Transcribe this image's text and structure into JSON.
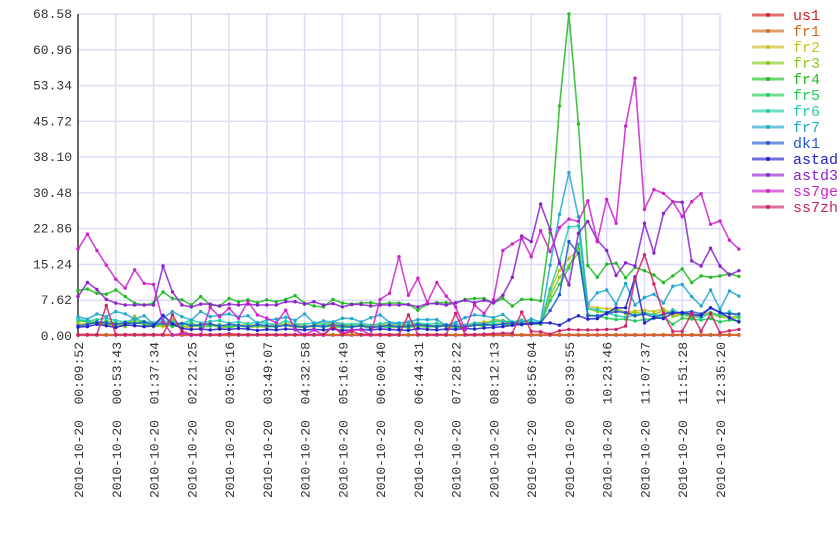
{
  "chart_data": {
    "type": "line",
    "title": "",
    "xlabel": "",
    "ylabel": "",
    "ylim": [
      0,
      68.58
    ],
    "yticks": [
      "0.00",
      "7.62",
      "15.24",
      "22.86",
      "30.48",
      "38.10",
      "45.72",
      "53.34",
      "60.96",
      "68.58"
    ],
    "xticks": [
      "2010-10-20 00:09:52",
      "2010-10-20 00:53:43",
      "2010-10-20 01:37:34",
      "2010-10-20 02:21:25",
      "2010-10-20 03:05:16",
      "2010-10-20 03:49:07",
      "2010-10-20 04:32:58",
      "2010-10-20 05:16:49",
      "2010-10-20 06:00:40",
      "2010-10-20 06:44:31",
      "2010-10-20 07:28:22",
      "2010-10-20 08:12:13",
      "2010-10-20 08:56:04",
      "2010-10-20 09:39:55",
      "2010-10-20 10:23:46",
      "2010-10-20 11:07:37",
      "2010-10-20 11:51:28",
      "2010-10-20 12:35:20"
    ],
    "points_per_tick_interval": 4,
    "grid": true,
    "legend_position": "right",
    "series": [
      {
        "name": "us1",
        "color": "#d42020",
        "values": [
          0.2,
          0.2,
          0.2,
          0.2,
          0.2,
          0.2,
          0.2,
          0.2,
          0.2,
          0.2,
          0.2,
          0.2,
          0.2,
          0.2,
          0.2,
          0.2,
          0.2,
          0.2,
          0.2,
          0.2,
          0.2,
          0.2,
          0.2,
          0.2,
          0.2,
          0.2,
          0.2,
          0.2,
          0.2,
          0.2,
          0.2,
          0.2,
          0.2,
          0.2,
          0.2,
          0.2,
          0.2,
          0.2,
          0.2,
          0.2,
          0.2,
          0.2,
          0.2,
          0.2,
          0.2,
          0.2,
          0.2,
          0.2,
          0.2,
          0.2,
          0.2,
          0.2,
          0.2,
          0.2,
          0.2,
          0.2,
          0.2,
          0.2,
          0.2,
          0.2,
          0.2,
          0.2,
          0.2,
          0.2,
          0.2,
          0.2,
          0.2,
          0.2,
          0.2,
          0.2,
          0.2
        ]
      },
      {
        "name": "fr1",
        "color": "#d06a20",
        "values": [
          0.3,
          0.3,
          0.3,
          0.3,
          0.3,
          0.3,
          0.3,
          0.3,
          0.3,
          0.3,
          0.3,
          0.3,
          0.3,
          0.3,
          0.3,
          0.3,
          0.3,
          0.3,
          0.3,
          0.3,
          0.3,
          0.3,
          0.3,
          0.3,
          0.3,
          0.3,
          0.3,
          0.3,
          0.3,
          0.3,
          0.3,
          0.3,
          0.3,
          0.3,
          0.3,
          0.3,
          0.3,
          0.3,
          0.3,
          0.3,
          0.3,
          0.3,
          0.3,
          0.3,
          0.3,
          0.3,
          0.3,
          0.3,
          0.3,
          0.3,
          0.3,
          0.3,
          0.3,
          0.3,
          0.3,
          0.3,
          0.3,
          0.3,
          0.3,
          0.3,
          0.3,
          0.3,
          0.3,
          0.3,
          0.3,
          0.3,
          0.3,
          0.3,
          0.3,
          0.3,
          0.3
        ]
      },
      {
        "name": "fr2",
        "color": "#c8c020",
        "values": [
          2.5,
          2.8,
          3.0,
          2.6,
          2.4,
          2.2,
          3.5,
          2.7,
          2.2,
          2.0,
          2.4,
          2.0,
          1.8,
          2.6,
          2.5,
          2.2,
          2.0,
          2.2,
          2.5,
          2.1,
          2.0,
          2.3,
          2.6,
          2.4,
          2.2,
          1.9,
          2.4,
          2.8,
          2.5,
          2.2,
          2.4,
          2.0,
          2.3,
          2.6,
          2.2,
          2.0,
          2.5,
          2.3,
          2.1,
          2.4,
          2.0,
          1.8,
          2.7,
          3.0,
          3.2,
          3.0,
          2.8,
          3.1,
          3.0,
          2.6,
          9.5,
          14.0,
          16.5,
          18.5,
          6.4,
          6.0,
          5.8,
          5.9,
          5.0,
          5.3,
          5.5,
          5.2,
          5.8,
          4.5,
          4.8,
          4.2,
          4.6,
          5.0,
          4.4,
          4.0,
          4.2
        ]
      },
      {
        "name": "fr3",
        "color": "#8cc820",
        "values": [
          3.0,
          3.3,
          2.8,
          2.5,
          2.2,
          2.0,
          4.2,
          2.4,
          2.0,
          2.3,
          3.5,
          1.8,
          2.2,
          2.0,
          2.5,
          1.7,
          2.0,
          2.2,
          1.8,
          2.0,
          1.9,
          2.1,
          2.3,
          1.8,
          2.0,
          2.2,
          3.2,
          1.9,
          2.4,
          2.0,
          2.1,
          1.6,
          2.2,
          2.0,
          1.8,
          2.4,
          2.0,
          1.9,
          2.3,
          2.0,
          1.7,
          2.2,
          2.5,
          2.0,
          3.5,
          3.3,
          2.9,
          3.2,
          3.0,
          2.7,
          8.5,
          12.5,
          15.0,
          17.7,
          5.8,
          5.2,
          5.0,
          5.5,
          4.8,
          4.9,
          5.0,
          4.6,
          5.4,
          4.2,
          4.5,
          4.0,
          4.4,
          4.6,
          4.1,
          3.8,
          3.9
        ]
      },
      {
        "name": "fr4",
        "color": "#22bb22",
        "values": [
          9.7,
          10.0,
          9.1,
          8.9,
          9.8,
          8.4,
          7.0,
          6.6,
          7.0,
          9.4,
          8.0,
          7.7,
          6.6,
          8.4,
          6.6,
          6.4,
          8.0,
          7.3,
          7.7,
          7.1,
          7.7,
          7.3,
          7.8,
          8.6,
          7.0,
          6.4,
          6.2,
          7.8,
          7.0,
          6.8,
          7.0,
          7.1,
          6.8,
          7.0,
          7.0,
          6.7,
          5.5,
          6.8,
          7.1,
          7.1,
          7.0,
          7.8,
          8.0,
          8.0,
          7.0,
          8.0,
          6.4,
          7.8,
          7.8,
          7.5,
          22.0,
          49.0,
          68.58,
          45.2,
          15.0,
          12.5,
          15.3,
          15.5,
          12.4,
          14.6,
          13.9,
          13.0,
          11.4,
          12.8,
          14.3,
          11.4,
          12.8,
          12.5,
          12.8,
          13.2,
          12.7
        ]
      },
      {
        "name": "fr5",
        "color": "#22cc55",
        "values": [
          3.4,
          3.0,
          2.6,
          3.2,
          2.8,
          2.4,
          3.0,
          2.5,
          2.2,
          2.6,
          2.0,
          2.3,
          2.8,
          1.9,
          2.1,
          2.4,
          1.8,
          2.2,
          2.0,
          2.3,
          2.1,
          1.9,
          2.4,
          2.0,
          1.8,
          2.2,
          1.9,
          2.1,
          1.7,
          2.0,
          2.2,
          1.9,
          2.0,
          1.8,
          2.1,
          1.7,
          2.3,
          2.0,
          1.9,
          2.2,
          2.0,
          1.8,
          2.4,
          2.1,
          2.6,
          2.5,
          2.3,
          2.8,
          2.6,
          2.5,
          7.5,
          11.0,
          14.5,
          19.5,
          4.5,
          4.3,
          3.8,
          3.5,
          3.6,
          3.2,
          3.5,
          3.7,
          4.2,
          2.5,
          3.8,
          3.6,
          3.4,
          3.7,
          3.0,
          3.4,
          3.2
        ]
      },
      {
        "name": "fr6",
        "color": "#22ccaa",
        "values": [
          3.6,
          3.2,
          3.5,
          3.8,
          3.3,
          3.0,
          3.6,
          3.1,
          2.8,
          3.2,
          3.0,
          2.6,
          3.4,
          2.8,
          3.1,
          3.3,
          2.7,
          3.0,
          2.6,
          2.9,
          2.7,
          2.4,
          3.2,
          2.6,
          2.5,
          2.8,
          2.4,
          3.0,
          2.6,
          2.5,
          2.7,
          2.3,
          2.6,
          2.9,
          2.4,
          2.6,
          2.8,
          2.5,
          2.7,
          2.4,
          2.6,
          2.3,
          2.8,
          2.6,
          3.0,
          3.2,
          3.0,
          3.4,
          3.0,
          2.8,
          10.0,
          16.0,
          23.2,
          23.4,
          5.9,
          5.6,
          5.0,
          4.3,
          4.0,
          4.4,
          4.8,
          4.5,
          4.3,
          5.6,
          4.6,
          4.4,
          3.8,
          5.0,
          4.3,
          5.2,
          4.0
        ]
      },
      {
        "name": "fr7",
        "color": "#22a8cc",
        "values": [
          4.1,
          3.6,
          4.7,
          4.1,
          5.2,
          4.7,
          3.6,
          4.3,
          2.6,
          3.8,
          5.2,
          4.1,
          3.4,
          5.2,
          4.1,
          4.4,
          4.7,
          4.0,
          4.3,
          2.7,
          3.4,
          3.6,
          4.0,
          3.3,
          4.7,
          2.7,
          3.2,
          3.0,
          3.8,
          3.7,
          3.0,
          3.9,
          4.5,
          2.9,
          2.8,
          3.0,
          3.5,
          3.5,
          3.5,
          2.2,
          2.9,
          3.9,
          4.5,
          4.3,
          3.9,
          4.6,
          2.9,
          2.9,
          3.6,
          3.0,
          15.1,
          25.9,
          34.8,
          25.4,
          6.8,
          9.2,
          9.8,
          6.8,
          11.2,
          6.6,
          8.2,
          8.9,
          7.0,
          10.6,
          11.0,
          8.4,
          6.4,
          9.8,
          5.7,
          9.6,
          8.5
        ]
      },
      {
        "name": "dk1",
        "color": "#2258cc",
        "values": [
          2.2,
          2.4,
          3.0,
          2.8,
          2.5,
          2.9,
          2.6,
          3.0,
          2.4,
          2.8,
          2.5,
          2.7,
          2.2,
          2.4,
          2.6,
          2.1,
          2.5,
          2.3,
          2.0,
          2.4,
          2.2,
          2.0,
          2.3,
          2.1,
          1.9,
          2.2,
          2.0,
          2.4,
          2.1,
          1.9,
          2.2,
          1.8,
          2.0,
          2.3,
          1.9,
          2.1,
          2.4,
          2.2,
          2.0,
          2.3,
          2.1,
          1.9,
          2.3,
          2.5,
          2.2,
          2.6,
          2.8,
          2.4,
          2.8,
          2.8,
          5.4,
          8.8,
          20.1,
          17.6,
          4.3,
          4.3,
          4.7,
          5.2,
          5.0,
          4.3,
          4.7,
          4.0,
          4.7,
          5.0,
          5.0,
          5.2,
          4.7,
          6.0,
          5.0,
          4.7,
          4.7
        ]
      },
      {
        "name": "astad",
        "color": "#2222cc",
        "values": [
          1.9,
          2.0,
          2.5,
          2.2,
          1.8,
          2.4,
          2.2,
          2.0,
          2.1,
          4.4,
          2.6,
          1.6,
          1.4,
          1.5,
          1.3,
          1.5,
          1.4,
          1.6,
          1.5,
          1.2,
          1.4,
          1.3,
          1.5,
          1.4,
          1.3,
          1.4,
          1.3,
          1.5,
          1.2,
          1.3,
          1.4,
          1.3,
          1.5,
          1.4,
          1.3,
          1.2,
          1.6,
          1.4,
          1.3,
          1.5,
          1.4,
          1.6,
          1.5,
          1.7,
          1.8,
          2.0,
          2.3,
          2.5,
          2.6,
          2.8,
          2.8,
          2.3,
          3.4,
          4.3,
          3.6,
          3.7,
          4.9,
          6.0,
          6.0,
          12.6,
          2.8,
          3.9,
          3.7,
          4.9,
          4.9,
          4.7,
          4.3,
          6.0,
          5.0,
          3.9,
          3.0
        ]
      },
      {
        "name": "astd3",
        "color": "#8a22cc",
        "values": [
          8.4,
          11.4,
          9.9,
          7.8,
          7.0,
          6.6,
          6.6,
          6.6,
          6.6,
          14.9,
          9.4,
          6.6,
          6.2,
          6.8,
          6.8,
          6.4,
          6.8,
          6.6,
          6.8,
          6.6,
          6.6,
          6.6,
          7.3,
          7.3,
          6.8,
          7.3,
          6.6,
          6.9,
          6.2,
          6.7,
          6.7,
          6.4,
          6.6,
          6.6,
          6.6,
          6.7,
          6.2,
          6.9,
          6.9,
          6.6,
          7.1,
          7.6,
          7.1,
          7.6,
          7.1,
          8.7,
          12.5,
          21.3,
          20.1,
          28.1,
          22.7,
          15.5,
          10.9,
          21.9,
          24.4,
          20.4,
          18.2,
          12.9,
          15.6,
          14.9,
          24.0,
          17.7,
          26.1,
          28.6,
          28.5,
          16.0,
          14.9,
          18.7,
          14.9,
          13.0,
          13.9
        ]
      },
      {
        "name": "ss7ge",
        "color": "#cc22cc",
        "values": [
          18.5,
          21.7,
          18.2,
          15.1,
          12.1,
          10.2,
          14.1,
          11.2,
          11.0,
          3.0,
          0.2,
          0.6,
          0.2,
          0.2,
          6.1,
          4.1,
          5.9,
          3.8,
          7.3,
          4.5,
          3.8,
          2.8,
          5.5,
          1.3,
          0.2,
          1.3,
          0.2,
          2.0,
          0.6,
          1.3,
          1.3,
          0.2,
          7.8,
          9.1,
          16.9,
          8.7,
          12.3,
          7.1,
          11.4,
          8.5,
          6.2,
          1.3,
          6.6,
          4.8,
          7.7,
          18.2,
          19.6,
          20.8,
          16.9,
          22.4,
          18.0,
          23.1,
          24.9,
          24.4,
          28.8,
          20.1,
          29.1,
          24.0,
          44.7,
          54.9,
          27.0,
          31.2,
          30.4,
          28.6,
          25.4,
          28.6,
          30.3,
          23.8,
          24.5,
          20.4,
          18.5
        ]
      },
      {
        "name": "ss7zh",
        "color": "#cc2266",
        "values": [
          0.3,
          0.3,
          0.3,
          6.5,
          0.3,
          0.3,
          0.3,
          0.3,
          0.3,
          0.3,
          4.5,
          1.0,
          0.3,
          0.3,
          0.3,
          0.3,
          0.5,
          0.3,
          0.3,
          0.3,
          0.3,
          0.3,
          0.3,
          0.3,
          0.3,
          0.3,
          0.3,
          2.1,
          0.3,
          1.0,
          0.3,
          0.3,
          0.3,
          0.3,
          0.3,
          4.5,
          0.3,
          0.3,
          0.3,
          0.3,
          4.8,
          0.3,
          0.3,
          0.4,
          0.5,
          0.6,
          0.6,
          5.1,
          1.0,
          0.9,
          0.4,
          1.1,
          1.4,
          1.3,
          1.3,
          1.3,
          1.4,
          1.4,
          2.1,
          12.2,
          17.3,
          11.1,
          4.8,
          1.0,
          1.0,
          4.8,
          1.0,
          4.8,
          0.7,
          1.1,
          1.4
        ]
      }
    ]
  }
}
